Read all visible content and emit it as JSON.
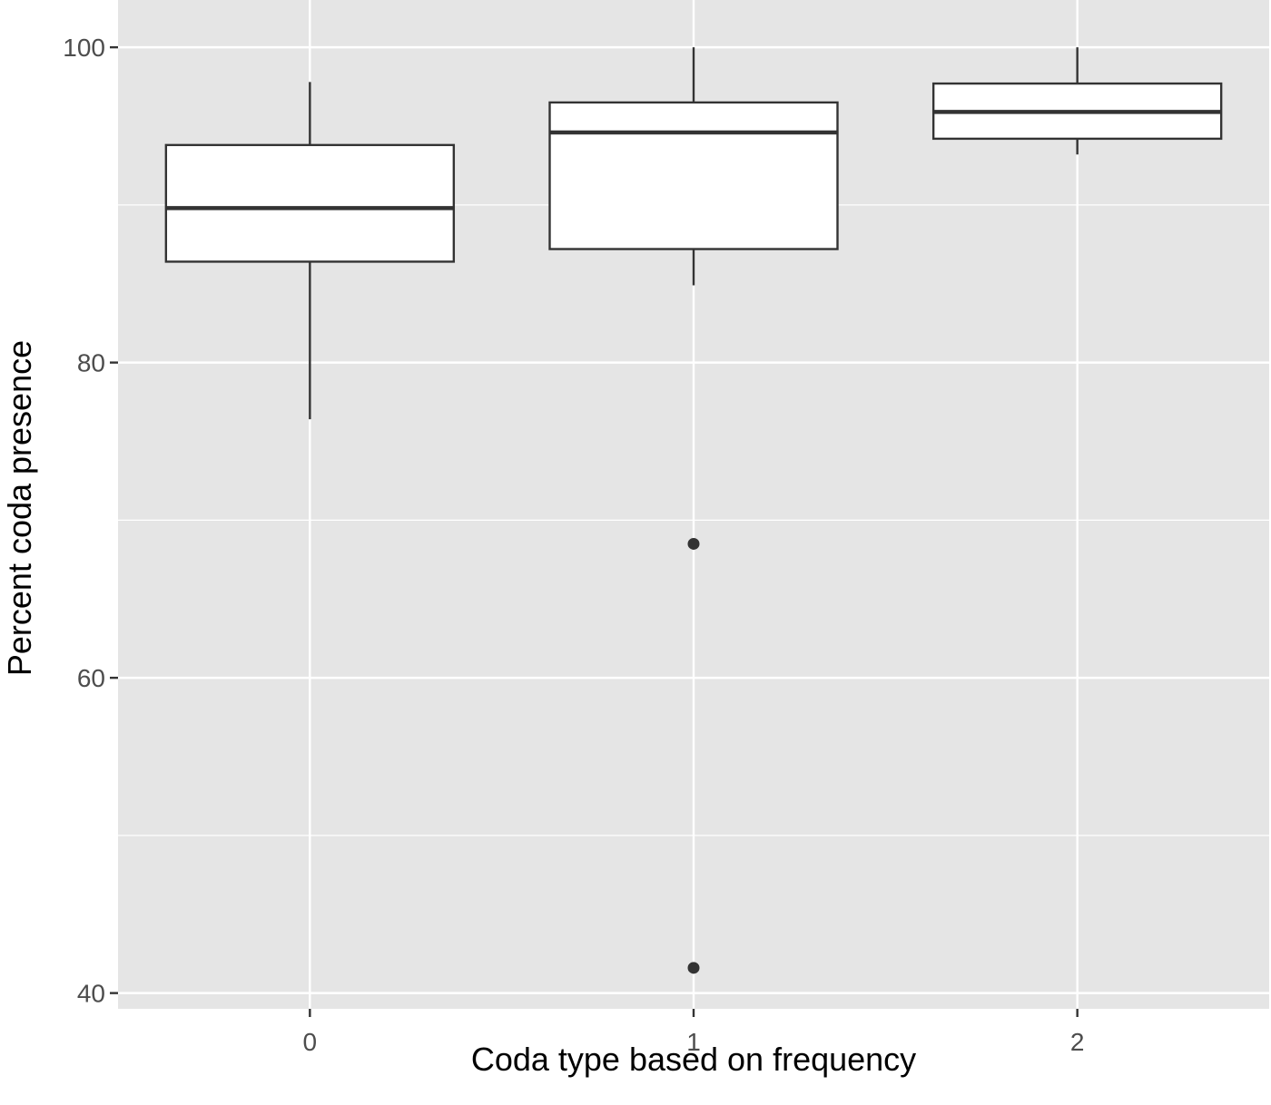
{
  "chart_data": {
    "type": "boxplot",
    "xlabel": "Coda type based on frequency",
    "ylabel": "Percent coda presence",
    "categories": [
      "0",
      "1",
      "2"
    ],
    "y_ticks": [
      40,
      60,
      80,
      100
    ],
    "ylim": [
      39,
      103
    ],
    "grid": true,
    "boxes": [
      {
        "category": "0",
        "whisker_low": 76.4,
        "q1": 86.4,
        "median": 89.8,
        "q3": 93.8,
        "whisker_high": 97.8,
        "outliers": []
      },
      {
        "category": "1",
        "whisker_low": 84.9,
        "q1": 87.2,
        "median": 94.6,
        "q3": 96.5,
        "whisker_high": 100,
        "outliers": [
          68.5,
          41.6
        ]
      },
      {
        "category": "2",
        "whisker_low": 93.2,
        "q1": 94.2,
        "median": 95.9,
        "q3": 97.7,
        "whisker_high": 100,
        "outliers": []
      }
    ],
    "colors": {
      "panel_background": "#e5e5e5",
      "grid": "#ffffff",
      "box_fill": "#ffffff",
      "box_stroke": "#333333",
      "outlier": "#333333"
    }
  }
}
